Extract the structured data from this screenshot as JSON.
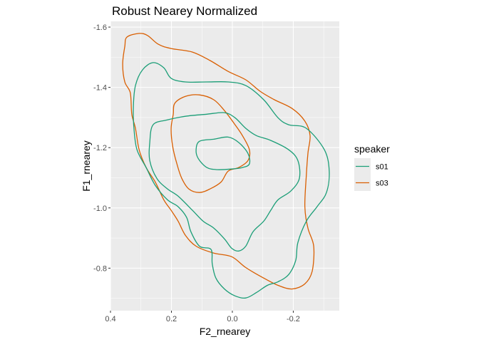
{
  "chart_data": {
    "type": "contour",
    "title": "Robust Nearey Normalized",
    "xlabel": "F2_rnearey",
    "ylabel": "F1_rnearey",
    "xlim": [
      0.4,
      -0.351
    ],
    "ylim": [
      -1.619,
      -0.659
    ],
    "x_reversed": true,
    "y_reversed": true,
    "x_ticks": [
      0.4,
      0.2,
      0.0,
      -0.2
    ],
    "x_tick_labels": [
      "0.4",
      "0.2",
      "0.0",
      "-0.2"
    ],
    "y_ticks": [
      -1.6,
      -1.4,
      -1.2,
      -1.0,
      -0.8
    ],
    "y_tick_labels": [
      "-1.6",
      "-1.4",
      "-1.2",
      "-1.0",
      "-0.8"
    ],
    "grid": true,
    "legend": {
      "title": "speaker",
      "position": "right",
      "entries": [
        "s01",
        "s03"
      ]
    },
    "colors": {
      "s01": "#1B9E77",
      "s03": "#D95F02"
    },
    "series": [
      {
        "name": "s03",
        "contours": [
          [
            [
              0.346,
              -1.567
            ],
            [
              0.306,
              -1.579
            ],
            [
              0.278,
              -1.572
            ],
            [
              0.243,
              -1.543
            ],
            [
              0.201,
              -1.529
            ],
            [
              0.131,
              -1.517
            ],
            [
              0.073,
              -1.489
            ],
            [
              0.014,
              -1.453
            ],
            [
              -0.044,
              -1.425
            ],
            [
              -0.091,
              -1.387
            ],
            [
              -0.138,
              -1.359
            ],
            [
              -0.196,
              -1.33
            ],
            [
              -0.238,
              -1.288
            ],
            [
              -0.255,
              -1.24
            ],
            [
              -0.248,
              -1.181
            ],
            [
              -0.243,
              -1.11
            ],
            [
              -0.238,
              -1.004
            ],
            [
              -0.248,
              -0.933
            ],
            [
              -0.267,
              -0.873
            ],
            [
              -0.262,
              -0.79
            ],
            [
              -0.238,
              -0.748
            ],
            [
              -0.196,
              -0.731
            ],
            [
              -0.15,
              -0.743
            ],
            [
              -0.103,
              -0.767
            ],
            [
              -0.044,
              -0.802
            ],
            [
              0.002,
              -0.838
            ],
            [
              0.061,
              -0.85
            ],
            [
              0.119,
              -0.873
            ],
            [
              0.154,
              -0.909
            ],
            [
              0.178,
              -0.956
            ],
            [
              0.201,
              -0.992
            ],
            [
              0.225,
              -1.027
            ],
            [
              0.253,
              -1.086
            ],
            [
              0.283,
              -1.134
            ],
            [
              0.306,
              -1.193
            ],
            [
              0.318,
              -1.264
            ],
            [
              0.33,
              -1.311
            ],
            [
              0.335,
              -1.382
            ],
            [
              0.353,
              -1.418
            ],
            [
              0.36,
              -1.477
            ],
            [
              0.353,
              -1.536
            ]
          ],
          [
            [
              0.189,
              -1.347
            ],
            [
              0.154,
              -1.37
            ],
            [
              0.108,
              -1.375
            ],
            [
              0.061,
              -1.359
            ],
            [
              0.026,
              -1.323
            ],
            [
              -0.009,
              -1.276
            ],
            [
              -0.033,
              -1.24
            ],
            [
              -0.056,
              -1.193
            ],
            [
              -0.051,
              -1.157
            ],
            [
              -0.021,
              -1.134
            ],
            [
              0.014,
              -1.122
            ],
            [
              0.037,
              -1.086
            ],
            [
              0.073,
              -1.063
            ],
            [
              0.108,
              -1.051
            ],
            [
              0.143,
              -1.063
            ],
            [
              0.166,
              -1.098
            ],
            [
              0.182,
              -1.146
            ],
            [
              0.196,
              -1.205
            ],
            [
              0.201,
              -1.264
            ],
            [
              0.194,
              -1.311
            ]
          ]
        ]
      },
      {
        "name": "s01",
        "contours": [
          [
            [
              0.26,
              -1.482
            ],
            [
              0.225,
              -1.465
            ],
            [
              0.201,
              -1.43
            ],
            [
              0.154,
              -1.418
            ],
            [
              0.084,
              -1.418
            ],
            [
              0.014,
              -1.418
            ],
            [
              -0.044,
              -1.406
            ],
            [
              -0.103,
              -1.359
            ],
            [
              -0.15,
              -1.299
            ],
            [
              -0.185,
              -1.276
            ],
            [
              -0.243,
              -1.264
            ],
            [
              -0.302,
              -1.193
            ],
            [
              -0.318,
              -1.122
            ],
            [
              -0.309,
              -1.051
            ],
            [
              -0.278,
              -1.004
            ],
            [
              -0.243,
              -0.956
            ],
            [
              -0.215,
              -0.885
            ],
            [
              -0.208,
              -0.826
            ],
            [
              -0.185,
              -0.779
            ],
            [
              -0.15,
              -0.755
            ],
            [
              -0.115,
              -0.743
            ],
            [
              -0.079,
              -0.719
            ],
            [
              -0.044,
              -0.701
            ],
            [
              -0.009,
              -0.708
            ],
            [
              0.026,
              -0.731
            ],
            [
              0.054,
              -0.767
            ],
            [
              0.066,
              -0.814
            ],
            [
              0.07,
              -0.862
            ],
            [
              0.108,
              -0.873
            ],
            [
              0.136,
              -0.921
            ],
            [
              0.15,
              -0.968
            ],
            [
              0.178,
              -1.004
            ],
            [
              0.213,
              -1.027
            ],
            [
              0.253,
              -1.075
            ],
            [
              0.283,
              -1.134
            ],
            [
              0.313,
              -1.193
            ],
            [
              0.323,
              -1.264
            ],
            [
              0.325,
              -1.335
            ],
            [
              0.318,
              -1.406
            ],
            [
              0.295,
              -1.458
            ]
          ],
          [
            [
              0.26,
              -1.276
            ],
            [
              0.213,
              -1.292
            ],
            [
              0.154,
              -1.304
            ],
            [
              0.084,
              -1.311
            ],
            [
              0.026,
              -1.316
            ],
            [
              -0.009,
              -1.299
            ],
            [
              -0.044,
              -1.264
            ],
            [
              -0.079,
              -1.24
            ],
            [
              -0.126,
              -1.224
            ],
            [
              -0.185,
              -1.193
            ],
            [
              -0.215,
              -1.157
            ],
            [
              -0.22,
              -1.098
            ],
            [
              -0.192,
              -1.056
            ],
            [
              -0.15,
              -1.027
            ],
            [
              -0.126,
              -0.992
            ],
            [
              -0.103,
              -0.956
            ],
            [
              -0.068,
              -0.921
            ],
            [
              -0.044,
              -0.873
            ],
            [
              -0.021,
              -0.857
            ],
            [
              0.002,
              -0.866
            ],
            [
              0.026,
              -0.897
            ],
            [
              0.061,
              -0.933
            ],
            [
              0.096,
              -0.956
            ],
            [
              0.131,
              -0.992
            ],
            [
              0.178,
              -1.039
            ],
            [
              0.213,
              -1.063
            ],
            [
              0.248,
              -1.098
            ],
            [
              0.271,
              -1.157
            ],
            [
              0.271,
              -1.217
            ]
          ],
          [
            [
              0.108,
              -1.221
            ],
            [
              0.061,
              -1.228
            ],
            [
              0.014,
              -1.235
            ],
            [
              -0.021,
              -1.217
            ],
            [
              -0.051,
              -1.181
            ],
            [
              -0.056,
              -1.146
            ],
            [
              -0.033,
              -1.134
            ],
            [
              0.002,
              -1.129
            ],
            [
              0.049,
              -1.127
            ],
            [
              0.084,
              -1.134
            ],
            [
              0.112,
              -1.164
            ],
            [
              0.119,
              -1.193
            ]
          ]
        ]
      }
    ]
  }
}
